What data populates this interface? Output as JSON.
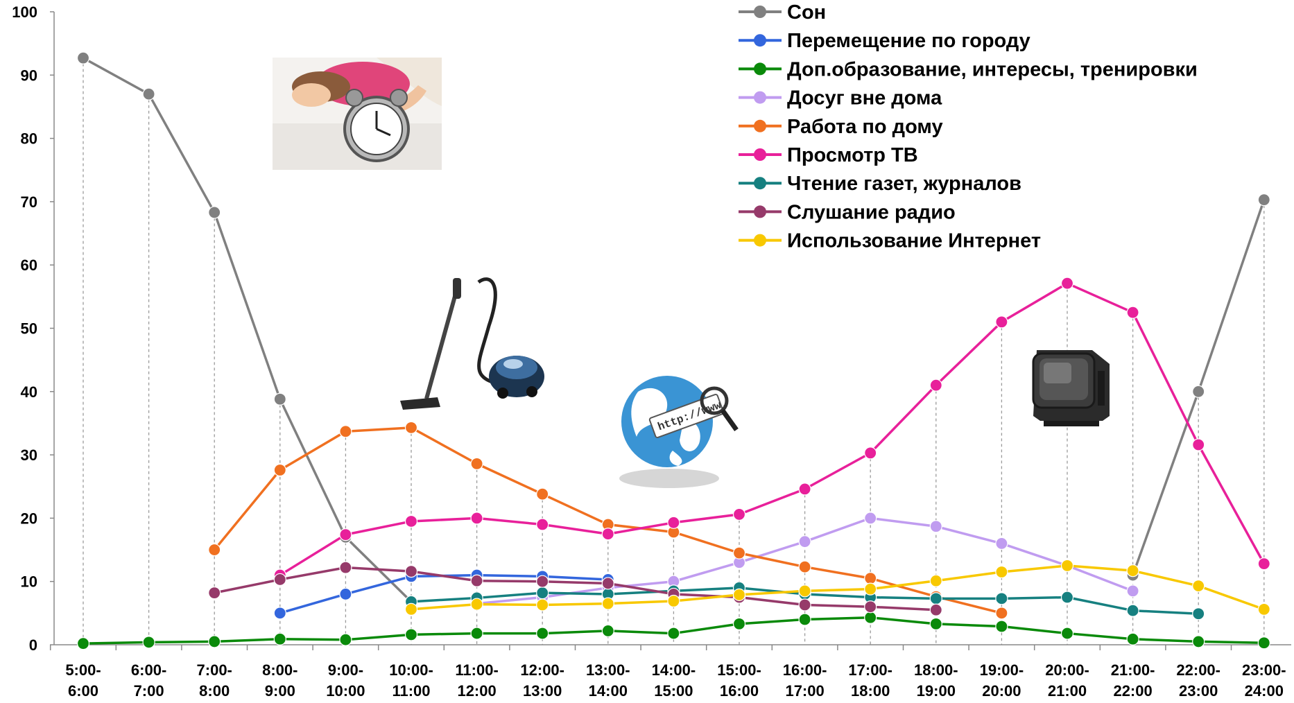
{
  "chart_data": {
    "type": "line",
    "title": "",
    "xlabel": "",
    "ylabel": "",
    "ylim": [
      0,
      100
    ],
    "yticks": [
      0,
      10,
      20,
      30,
      40,
      50,
      60,
      70,
      80,
      90,
      100
    ],
    "grid": "dashed vertical drop lines",
    "legend_position": "top-right",
    "categories": [
      [
        "5:00-",
        "6:00"
      ],
      [
        "6:00-",
        "7:00"
      ],
      [
        "7:00-",
        "8:00"
      ],
      [
        "8:00-",
        "9:00"
      ],
      [
        "9:00-",
        "10:00"
      ],
      [
        "10:00-",
        "11:00"
      ],
      [
        "11:00-",
        "12:00"
      ],
      [
        "12:00-",
        "13:00"
      ],
      [
        "13:00-",
        "14:00"
      ],
      [
        "14:00-",
        "15:00"
      ],
      [
        "15:00-",
        "16:00"
      ],
      [
        "16:00-",
        "17:00"
      ],
      [
        "17:00-",
        "18:00"
      ],
      [
        "18:00-",
        "19:00"
      ],
      [
        "19:00-",
        "20:00"
      ],
      [
        "20:00-",
        "21:00"
      ],
      [
        "21:00-",
        "22:00"
      ],
      [
        "22:00-",
        "23:00"
      ],
      [
        "23:00-",
        "24:00"
      ]
    ],
    "series": [
      {
        "name": "Сон",
        "color": "#808080",
        "values": [
          92.7,
          87,
          68.3,
          38.8,
          17,
          6.8,
          null,
          null,
          null,
          null,
          null,
          null,
          null,
          null,
          null,
          null,
          11,
          40,
          70.3
        ]
      },
      {
        "name": "Перемещение по городу",
        "color": "#3366dd",
        "values": [
          null,
          null,
          null,
          5,
          8,
          10.8,
          11,
          10.8,
          10.3,
          null,
          null,
          null,
          null,
          null,
          null,
          null,
          null,
          null,
          null
        ]
      },
      {
        "name": "Доп.образование, интересы, тренировки",
        "color": "#0a8a0a",
        "values": [
          0.2,
          0.4,
          0.5,
          0.9,
          0.8,
          1.6,
          1.8,
          1.8,
          2.2,
          1.8,
          3.3,
          4,
          4.3,
          3.3,
          2.9,
          1.8,
          0.9,
          0.5,
          0.3
        ]
      },
      {
        "name": "Досуг вне дома",
        "color": "#c09cf0",
        "values": [
          null,
          null,
          null,
          null,
          null,
          null,
          6.5,
          7.5,
          9,
          10,
          13,
          16.3,
          20,
          18.7,
          16,
          12.5,
          8.5,
          null,
          null
        ]
      },
      {
        "name": "Работа по дому",
        "color": "#f07020",
        "values": [
          null,
          null,
          15,
          27.6,
          33.7,
          34.3,
          28.6,
          23.8,
          19,
          17.8,
          14.5,
          12.3,
          10.5,
          7.6,
          5,
          null,
          null,
          null,
          null
        ]
      },
      {
        "name": "Просмотр ТВ",
        "color": "#e8209a",
        "values": [
          null,
          null,
          null,
          11,
          17.4,
          19.5,
          20,
          19,
          17.5,
          19.3,
          20.6,
          24.6,
          30.3,
          41,
          51,
          57.1,
          52.5,
          31.6,
          12.8
        ]
      },
      {
        "name": "Чтение газет, журналов",
        "color": "#168080",
        "values": [
          null,
          null,
          null,
          null,
          null,
          6.8,
          7.4,
          8.2,
          8,
          8.5,
          9,
          8,
          7.5,
          7.3,
          7.3,
          7.5,
          5.4,
          4.9,
          null
        ]
      },
      {
        "name": "Слушание радио",
        "color": "#963a6a",
        "values": [
          null,
          null,
          8.2,
          10.3,
          12.2,
          11.6,
          10.1,
          10,
          9.7,
          8,
          7.5,
          6.3,
          6,
          5.5,
          null,
          null,
          null,
          null,
          null
        ]
      },
      {
        "name": "Использование Интернет",
        "color": "#f8c800",
        "values": [
          null,
          null,
          null,
          null,
          null,
          5.6,
          6.4,
          6.3,
          6.5,
          6.9,
          7.9,
          8.5,
          8.8,
          10.1,
          11.5,
          12.5,
          11.7,
          9.3,
          5.6
        ]
      }
    ]
  },
  "illustrations": [
    {
      "name": "sleeping-woman-alarm-clock-icon"
    },
    {
      "name": "vacuum-cleaner-icon"
    },
    {
      "name": "globe-http-www-icon",
      "label": "http://www."
    },
    {
      "name": "tv-set-icon"
    }
  ]
}
